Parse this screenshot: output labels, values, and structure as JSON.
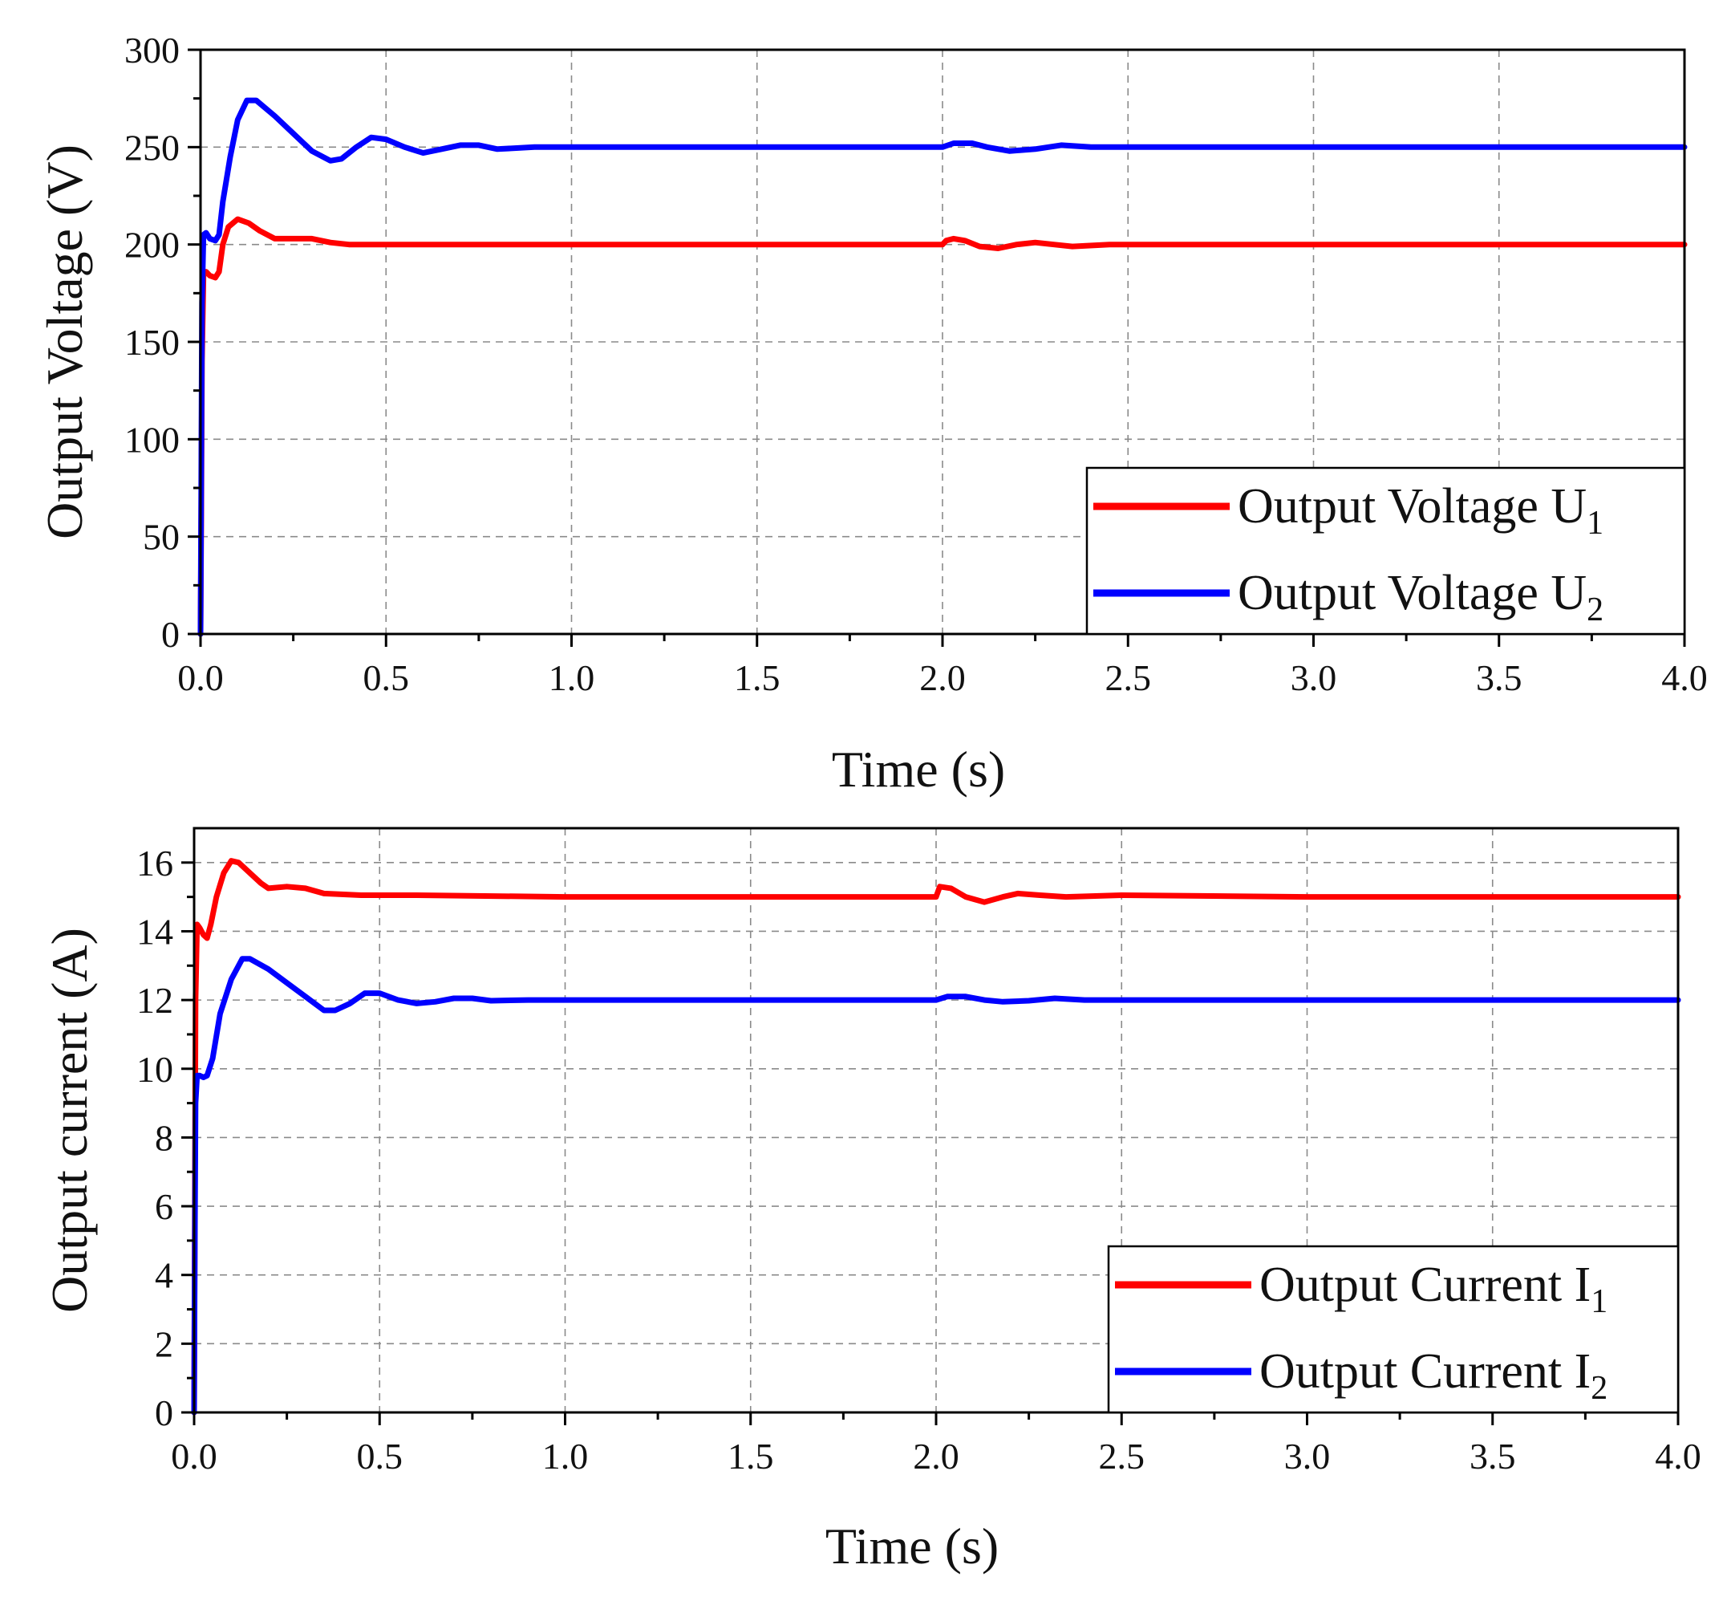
{
  "chart_data": [
    {
      "type": "line",
      "title": "",
      "xlabel": "Time (s)",
      "ylabel": "Output Voltage (V)",
      "xlim": [
        0,
        4
      ],
      "ylim": [
        0,
        300
      ],
      "xticks": [
        0,
        0.5,
        1,
        1.5,
        2,
        2.5,
        3,
        3.5,
        4
      ],
      "xtick_labels": [
        "0.0",
        "0.5",
        "1.0",
        "1.5",
        "2.0",
        "2.5",
        "3.0",
        "3.5",
        "4.0"
      ],
      "yticks": [
        0,
        50,
        100,
        150,
        200,
        250,
        300
      ],
      "ytick_labels": [
        "0",
        "50",
        "100",
        "150",
        "200",
        "250",
        "300"
      ],
      "grid": true,
      "legend_position": "bottom-right",
      "series": [
        {
          "name": "Output Voltage U1",
          "label_main": "Output Voltage U",
          "label_sub": "1",
          "color": "#ff0000",
          "points": [
            [
              0,
              0
            ],
            [
              0.002,
              60
            ],
            [
              0.004,
              140
            ],
            [
              0.008,
              185
            ],
            [
              0.015,
              186
            ],
            [
              0.025,
              184
            ],
            [
              0.04,
              183
            ],
            [
              0.05,
              186
            ],
            [
              0.06,
              200
            ],
            [
              0.075,
              209
            ],
            [
              0.1,
              213
            ],
            [
              0.13,
              211
            ],
            [
              0.16,
              207
            ],
            [
              0.2,
              203
            ],
            [
              0.25,
              203
            ],
            [
              0.3,
              203
            ],
            [
              0.35,
              201
            ],
            [
              0.4,
              200
            ],
            [
              0.6,
              200
            ],
            [
              1.0,
              200
            ],
            [
              1.5,
              200
            ],
            [
              2.0,
              200
            ],
            [
              2.01,
              202
            ],
            [
              2.03,
              203
            ],
            [
              2.06,
              202
            ],
            [
              2.1,
              199
            ],
            [
              2.15,
              198
            ],
            [
              2.2,
              200
            ],
            [
              2.25,
              201
            ],
            [
              2.3,
              200
            ],
            [
              2.35,
              199
            ],
            [
              2.45,
              200
            ],
            [
              2.6,
              200
            ],
            [
              3.0,
              200
            ],
            [
              4.0,
              200
            ]
          ]
        },
        {
          "name": "Output Voltage U2",
          "label_main": "Output Voltage U",
          "label_sub": "2",
          "color": "#0000ff",
          "points": [
            [
              0,
              0
            ],
            [
              0.002,
              80
            ],
            [
              0.004,
              170
            ],
            [
              0.008,
              205
            ],
            [
              0.015,
              206
            ],
            [
              0.025,
              203
            ],
            [
              0.04,
              202
            ],
            [
              0.05,
              205
            ],
            [
              0.06,
              222
            ],
            [
              0.08,
              245
            ],
            [
              0.1,
              264
            ],
            [
              0.125,
              274
            ],
            [
              0.15,
              274
            ],
            [
              0.2,
              266
            ],
            [
              0.25,
              257
            ],
            [
              0.3,
              248
            ],
            [
              0.35,
              243
            ],
            [
              0.38,
              244
            ],
            [
              0.42,
              250
            ],
            [
              0.46,
              255
            ],
            [
              0.5,
              254
            ],
            [
              0.55,
              250
            ],
            [
              0.6,
              247
            ],
            [
              0.65,
              249
            ],
            [
              0.7,
              251
            ],
            [
              0.75,
              251
            ],
            [
              0.8,
              249
            ],
            [
              0.9,
              250
            ],
            [
              1.0,
              250
            ],
            [
              1.5,
              250
            ],
            [
              2.0,
              250
            ],
            [
              2.03,
              252
            ],
            [
              2.08,
              252
            ],
            [
              2.12,
              250
            ],
            [
              2.18,
              248
            ],
            [
              2.25,
              249
            ],
            [
              2.32,
              251
            ],
            [
              2.4,
              250
            ],
            [
              2.6,
              250
            ],
            [
              3.0,
              250
            ],
            [
              4.0,
              250
            ]
          ]
        }
      ]
    },
    {
      "type": "line",
      "title": "",
      "xlabel": "Time (s)",
      "ylabel": "Output current (A)",
      "xlim": [
        0,
        4
      ],
      "ylim": [
        0,
        17
      ],
      "xticks": [
        0,
        0.5,
        1,
        1.5,
        2,
        2.5,
        3,
        3.5,
        4
      ],
      "xtick_labels": [
        "0.0",
        "0.5",
        "1.0",
        "1.5",
        "2.0",
        "2.5",
        "3.0",
        "3.5",
        "4.0"
      ],
      "yticks": [
        0,
        2,
        4,
        6,
        8,
        10,
        12,
        14,
        16
      ],
      "ytick_labels": [
        "0",
        "2",
        "4",
        "6",
        "8",
        "10",
        "12",
        "14",
        "16"
      ],
      "grid": true,
      "legend_position": "bottom-right",
      "series": [
        {
          "name": "Output Current I1",
          "label_main": "Output Current I",
          "label_sub": "1",
          "color": "#ff0000",
          "points": [
            [
              0,
              0
            ],
            [
              0.002,
              6
            ],
            [
              0.004,
              12
            ],
            [
              0.008,
              14.2
            ],
            [
              0.015,
              14.1
            ],
            [
              0.025,
              13.9
            ],
            [
              0.035,
              13.8
            ],
            [
              0.045,
              14.2
            ],
            [
              0.06,
              15.0
            ],
            [
              0.08,
              15.7
            ],
            [
              0.1,
              16.05
            ],
            [
              0.12,
              16.0
            ],
            [
              0.15,
              15.7
            ],
            [
              0.18,
              15.4
            ],
            [
              0.2,
              15.25
            ],
            [
              0.25,
              15.3
            ],
            [
              0.3,
              15.25
            ],
            [
              0.35,
              15.1
            ],
            [
              0.45,
              15.05
            ],
            [
              0.6,
              15.05
            ],
            [
              1.0,
              15.0
            ],
            [
              2.0,
              15.0
            ],
            [
              2.01,
              15.3
            ],
            [
              2.04,
              15.25
            ],
            [
              2.08,
              15.0
            ],
            [
              2.13,
              14.85
            ],
            [
              2.18,
              15.0
            ],
            [
              2.22,
              15.1
            ],
            [
              2.28,
              15.05
            ],
            [
              2.35,
              15.0
            ],
            [
              2.5,
              15.05
            ],
            [
              3.0,
              15.0
            ],
            [
              4.0,
              15.0
            ]
          ]
        },
        {
          "name": "Output Current I2",
          "label_main": "Output Current I",
          "label_sub": "2",
          "color": "#0000ff",
          "points": [
            [
              0,
              0
            ],
            [
              0.002,
              5
            ],
            [
              0.004,
              9
            ],
            [
              0.008,
              9.8
            ],
            [
              0.015,
              9.8
            ],
            [
              0.025,
              9.75
            ],
            [
              0.035,
              9.8
            ],
            [
              0.05,
              10.3
            ],
            [
              0.07,
              11.6
            ],
            [
              0.1,
              12.6
            ],
            [
              0.13,
              13.2
            ],
            [
              0.15,
              13.2
            ],
            [
              0.2,
              12.9
            ],
            [
              0.25,
              12.5
            ],
            [
              0.3,
              12.1
            ],
            [
              0.35,
              11.7
            ],
            [
              0.38,
              11.7
            ],
            [
              0.42,
              11.9
            ],
            [
              0.46,
              12.2
            ],
            [
              0.5,
              12.2
            ],
            [
              0.55,
              12.0
            ],
            [
              0.6,
              11.9
            ],
            [
              0.65,
              11.95
            ],
            [
              0.7,
              12.05
            ],
            [
              0.75,
              12.05
            ],
            [
              0.8,
              11.98
            ],
            [
              0.9,
              12.0
            ],
            [
              1.0,
              12.0
            ],
            [
              2.0,
              12.0
            ],
            [
              2.03,
              12.1
            ],
            [
              2.08,
              12.1
            ],
            [
              2.13,
              12.0
            ],
            [
              2.18,
              11.95
            ],
            [
              2.25,
              11.98
            ],
            [
              2.32,
              12.05
            ],
            [
              2.4,
              12.0
            ],
            [
              2.6,
              12.0
            ],
            [
              3.0,
              12.0
            ],
            [
              4.0,
              12.0
            ]
          ]
        }
      ]
    }
  ]
}
